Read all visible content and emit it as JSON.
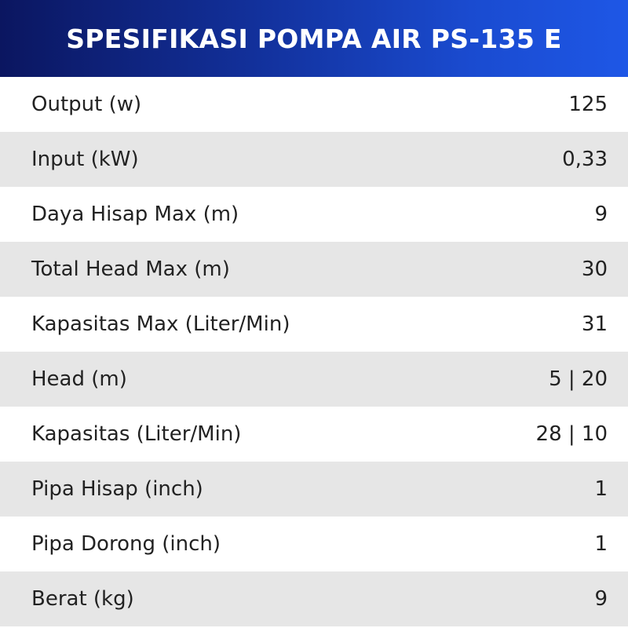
{
  "header": {
    "title": "SPESIFIKASI POMPA AIR PS-135 E"
  },
  "table": {
    "rows": [
      [
        "Output (w)",
        "125"
      ],
      [
        "Input (kW)",
        "0,33"
      ],
      [
        "Daya Hisap Max (m)",
        "9"
      ],
      [
        "Total Head Max (m)",
        "30"
      ],
      [
        "Kapasitas Max (Liter/Min)",
        "31"
      ],
      [
        "Head (m)",
        "5 | 20"
      ],
      [
        "Kapasitas (Liter/Min)",
        "28 | 10"
      ],
      [
        "Pipa Hisap (inch)",
        "1"
      ],
      [
        "Pipa Dorong (inch)",
        "1"
      ],
      [
        "Berat (kg)",
        "9"
      ]
    ]
  }
}
